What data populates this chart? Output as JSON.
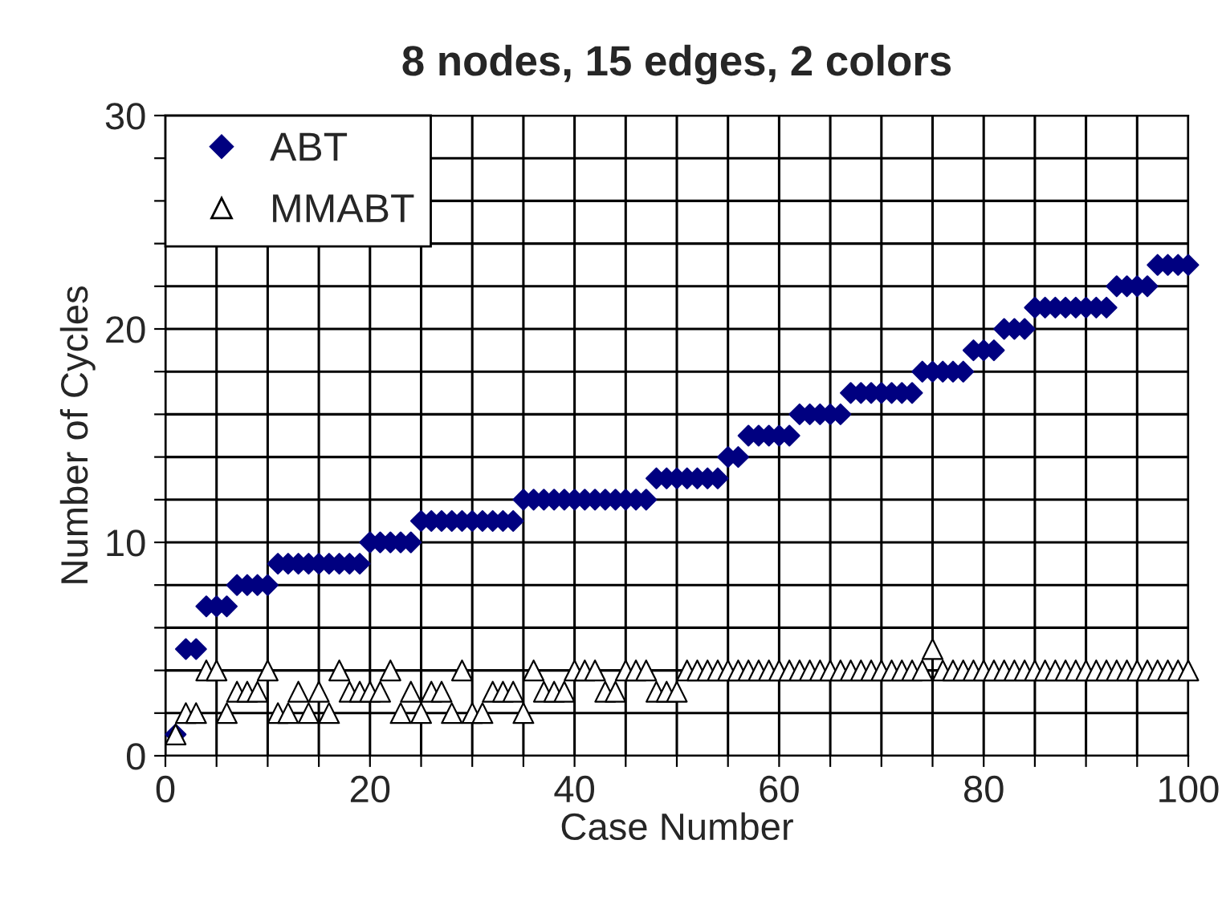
{
  "chart_data": {
    "type": "scatter",
    "title": "8 nodes, 15 edges, 2 colors",
    "xlabel": "Case Number",
    "ylabel": "Number of Cycles",
    "x": [
      1,
      2,
      3,
      4,
      5,
      6,
      7,
      8,
      9,
      10,
      11,
      12,
      13,
      14,
      15,
      16,
      17,
      18,
      19,
      20,
      21,
      22,
      23,
      24,
      25,
      26,
      27,
      28,
      29,
      30,
      31,
      32,
      33,
      34,
      35,
      36,
      37,
      38,
      39,
      40,
      41,
      42,
      43,
      44,
      45,
      46,
      47,
      48,
      49,
      50,
      51,
      52,
      53,
      54,
      55,
      56,
      57,
      58,
      59,
      60,
      61,
      62,
      63,
      64,
      65,
      66,
      67,
      68,
      69,
      70,
      71,
      72,
      73,
      74,
      75,
      76,
      77,
      78,
      79,
      80,
      81,
      82,
      83,
      84,
      85,
      86,
      87,
      88,
      89,
      90,
      91,
      92,
      93,
      94,
      95,
      96,
      97,
      98,
      99,
      100
    ],
    "series": [
      {
        "name": "ABT",
        "color": "#000080",
        "marker": "diamond",
        "values": [
          1,
          5,
          5,
          7,
          7,
          7,
          8,
          8,
          8,
          8,
          9,
          9,
          9,
          9,
          9,
          9,
          9,
          9,
          9,
          10,
          10,
          10,
          10,
          10,
          11,
          11,
          11,
          11,
          11,
          11,
          11,
          11,
          11,
          11,
          12,
          12,
          12,
          12,
          12,
          12,
          12,
          12,
          12,
          12,
          12,
          12,
          12,
          13,
          13,
          13,
          13,
          13,
          13,
          13,
          14,
          14,
          15,
          15,
          15,
          15,
          15,
          16,
          16,
          16,
          16,
          16,
          17,
          17,
          17,
          17,
          17,
          17,
          17,
          18,
          18,
          18,
          18,
          18,
          19,
          19,
          19,
          20,
          20,
          20,
          21,
          21,
          21,
          21,
          21,
          21,
          21,
          21,
          22,
          22,
          22,
          22,
          23,
          23,
          23,
          23
        ]
      },
      {
        "name": "MMABT",
        "color": "#ffffff",
        "marker": "triangle",
        "values": [
          1,
          2,
          2,
          4,
          4,
          2,
          3,
          3,
          3,
          4,
          2,
          2,
          3,
          2,
          3,
          2,
          4,
          3,
          3,
          3,
          3,
          4,
          2,
          3,
          2,
          3,
          3,
          2,
          4,
          2,
          2,
          3,
          3,
          3,
          2,
          4,
          3,
          3,
          3,
          4,
          4,
          4,
          3,
          3,
          4,
          4,
          4,
          3,
          3,
          3,
          4,
          4,
          4,
          4,
          4,
          4,
          4,
          4,
          4,
          4,
          4,
          4,
          4,
          4,
          4,
          4,
          4,
          4,
          4,
          4,
          4,
          4,
          4,
          4,
          5,
          4,
          4,
          4,
          4,
          4,
          4,
          4,
          4,
          4,
          4,
          4,
          4,
          4,
          4,
          4,
          4,
          4,
          4,
          4,
          4,
          4,
          4,
          4,
          4,
          4
        ]
      }
    ],
    "xlim": [
      0,
      100
    ],
    "ylim": [
      0,
      30
    ],
    "xticks": [
      0,
      {
        "value": 5,
        "label": null
      },
      20,
      {
        "value": 10,
        "label": null
      },
      {
        "value": 15,
        "label": null
      },
      {
        "value": 25,
        "label": null
      },
      {
        "value": 30,
        "label": null
      },
      {
        "value": 35,
        "label": null
      },
      40,
      {
        "value": 45,
        "label": null
      },
      {
        "value": 50,
        "label": null
      },
      {
        "value": 55,
        "label": null
      },
      60,
      {
        "value": 65,
        "label": null
      },
      {
        "value": 70,
        "label": null
      },
      {
        "value": 75,
        "label": null
      },
      80,
      {
        "value": 85,
        "label": null
      },
      {
        "value": 90,
        "label": null
      },
      {
        "value": 95,
        "label": null
      },
      100
    ],
    "yticks": [
      0,
      {
        "value": 2,
        "label": null
      },
      {
        "value": 4,
        "label": null
      },
      {
        "value": 6,
        "label": null
      },
      {
        "value": 8,
        "label": null
      },
      10,
      {
        "value": 12,
        "label": null
      },
      {
        "value": 14,
        "label": null
      },
      {
        "value": 16,
        "label": null
      },
      {
        "value": 18,
        "label": null
      },
      20,
      {
        "value": 22,
        "label": null
      },
      {
        "value": 24,
        "label": null
      },
      {
        "value": 26,
        "label": null
      },
      {
        "value": 28,
        "label": null
      },
      30
    ],
    "grid": true,
    "legend": "top left"
  }
}
